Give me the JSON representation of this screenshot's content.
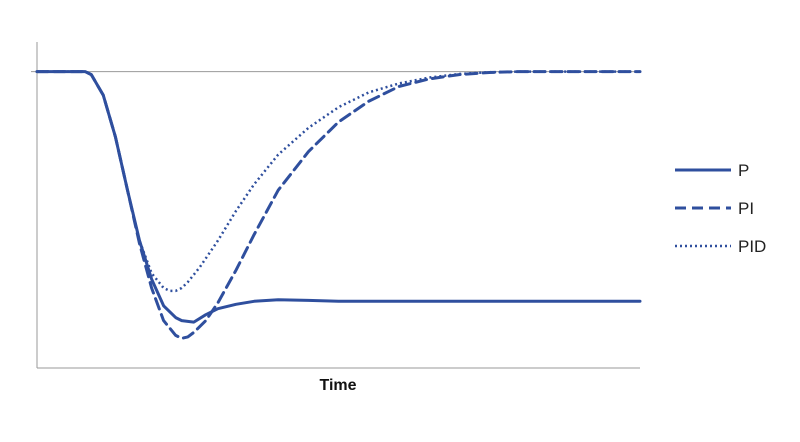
{
  "chart_data": {
    "type": "line",
    "title": "",
    "xlabel": "Time",
    "ylabel": "",
    "xlim": [
      0,
      100
    ],
    "ylim": [
      -100,
      10
    ],
    "grid": false,
    "reference_line": 0,
    "legend_position": "right",
    "colors": {
      "series": "#2f4f9e",
      "axis": "#9a9a9a"
    },
    "series": [
      {
        "name": "P",
        "style": "solid",
        "x": [
          0,
          8,
          9,
          11,
          13,
          15,
          17,
          19,
          21,
          23,
          24,
          26,
          28,
          30,
          33,
          36,
          40,
          45,
          50,
          60,
          70,
          80,
          90,
          100
        ],
        "y": [
          0,
          0,
          -1,
          -8,
          -22,
          -40,
          -57,
          -70,
          -79,
          -83,
          -84,
          -84.5,
          -82,
          -80,
          -78.5,
          -77.5,
          -77,
          -77.2,
          -77.5,
          -77.5,
          -77.5,
          -77.5,
          -77.5,
          -77.5
        ]
      },
      {
        "name": "PI",
        "style": "dashed",
        "x": [
          0,
          8,
          9,
          11,
          13,
          15,
          17,
          19,
          21,
          23,
          24,
          25,
          26,
          28,
          30,
          33,
          36,
          40,
          45,
          50,
          55,
          60,
          65,
          70,
          75,
          80,
          85,
          90,
          100
        ],
        "y": [
          0,
          0,
          -1,
          -8,
          -22,
          -40,
          -58,
          -73,
          -84,
          -89,
          -90,
          -89.5,
          -88,
          -84,
          -78,
          -67,
          -55,
          -40,
          -27,
          -17,
          -10,
          -5,
          -2.5,
          -1,
          -0.3,
          0,
          0,
          0,
          0
        ]
      },
      {
        "name": "PID",
        "style": "dotted",
        "x": [
          0,
          8,
          9,
          11,
          13,
          15,
          17,
          19,
          21,
          22,
          23,
          24,
          25,
          27,
          30,
          33,
          36,
          40,
          45,
          50,
          55,
          60,
          65,
          70,
          75,
          80,
          90,
          100
        ],
        "y": [
          0,
          0,
          -1,
          -8,
          -22,
          -40,
          -57,
          -68,
          -73,
          -74,
          -74,
          -73,
          -71,
          -66,
          -57,
          -47,
          -38,
          -28,
          -19,
          -12,
          -7,
          -4,
          -2,
          -0.8,
          -0.2,
          0,
          0,
          0
        ]
      }
    ]
  }
}
